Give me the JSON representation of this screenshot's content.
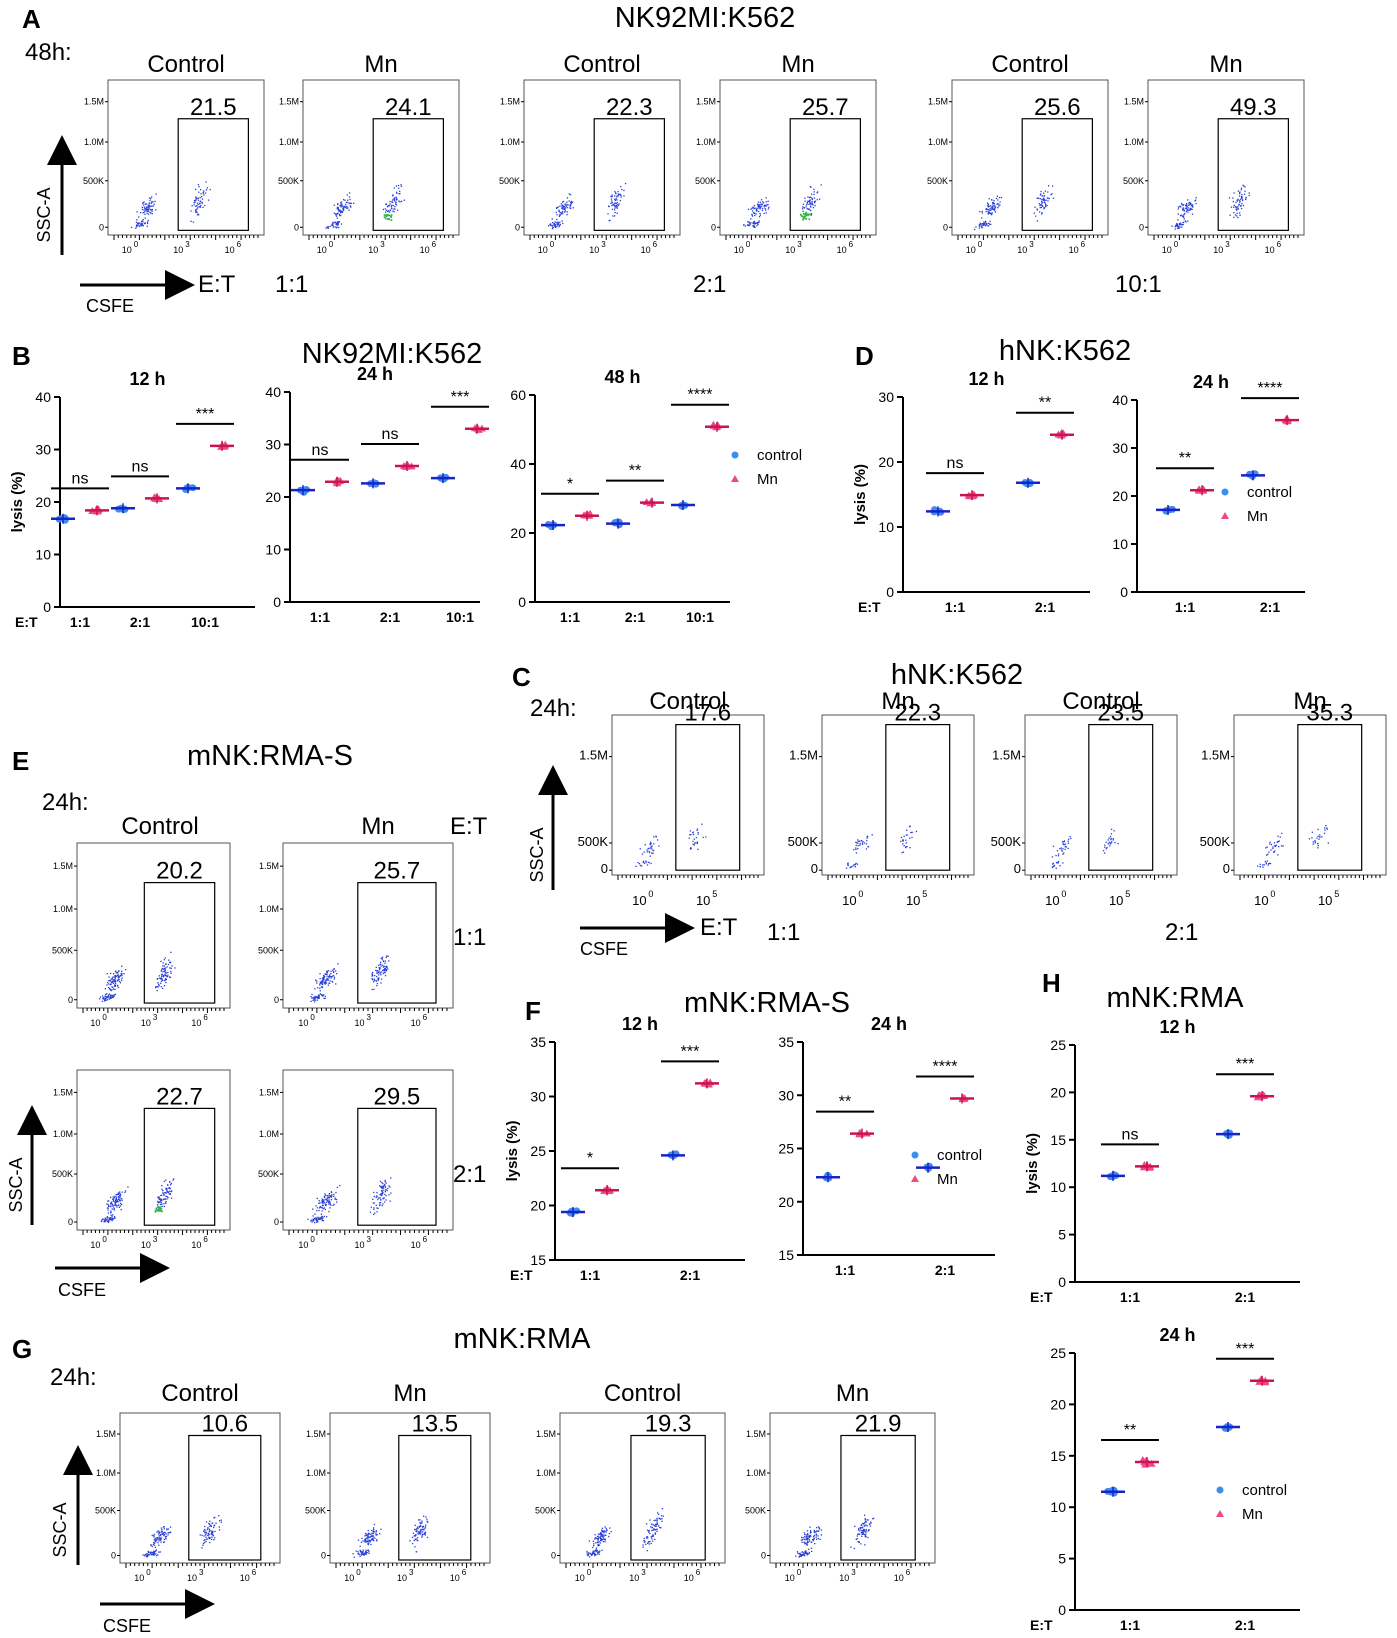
{
  "figure": {
    "A": {
      "letter": "A",
      "title": "NK92MI:K562",
      "time": "48h:",
      "et_label": "E:T",
      "x_axis": "CSFE",
      "y_axis": "SSC-A",
      "y_ticks": [
        "1.5M",
        "1.0M",
        "500K",
        "0"
      ],
      "x_ticks": [
        "10",
        "10",
        "10"
      ],
      "x_exp": [
        "0",
        "3",
        "6"
      ],
      "plots": [
        {
          "header": "Control",
          "gate": "21.5"
        },
        {
          "header": "Mn",
          "gate": "24.1"
        },
        {
          "header": "Control",
          "gate": "22.3"
        },
        {
          "header": "Mn",
          "gate": "25.7"
        },
        {
          "header": "Control",
          "gate": "25.6"
        },
        {
          "header": "Mn",
          "gate": "49.3"
        }
      ],
      "ratios": [
        "1:1",
        "2:1",
        "10:1"
      ]
    },
    "B": {
      "letter": "B",
      "title": "NK92MI:K562"
    },
    "C": {
      "letter": "C",
      "title": "hNK:K562",
      "time": "24h:",
      "et_label": "E:T",
      "x_axis": "CSFE",
      "y_axis": "SSC-A",
      "y_ticks": [
        "1.5M",
        "500K",
        "0"
      ],
      "x_ticks": [
        "10",
        "10"
      ],
      "x_exp": [
        "0",
        "5"
      ],
      "plots": [
        {
          "header": "Control",
          "gate": "17.6"
        },
        {
          "header": "Mn",
          "gate": "22.3"
        },
        {
          "header": "Control",
          "gate": "23.5"
        },
        {
          "header": "Mn",
          "gate": "35.3"
        }
      ],
      "ratios": [
        "1:1",
        "2:1"
      ]
    },
    "D": {
      "letter": "D",
      "title": "hNK:K562"
    },
    "E": {
      "letter": "E",
      "title": "mNK:RMA-S",
      "time": "24h:",
      "et_label": "E:T",
      "x_axis": "CSFE",
      "y_axis": "SSC-A",
      "y_ticks": [
        "1.5M",
        "1.0M",
        "500K",
        "0"
      ],
      "x_ticks": [
        "10",
        "10",
        "10"
      ],
      "x_exp": [
        "0",
        "3",
        "6"
      ],
      "headers": [
        "Control",
        "Mn"
      ],
      "plots": [
        {
          "gate": "20.2"
        },
        {
          "gate": "25.7"
        },
        {
          "gate": "22.7"
        },
        {
          "gate": "29.5"
        }
      ],
      "ratios": [
        "1:1",
        "2:1"
      ]
    },
    "F": {
      "letter": "F",
      "title": "mNK:RMA-S"
    },
    "G": {
      "letter": "G",
      "title": "mNK:RMA",
      "time": "24h:",
      "x_axis": "CSFE",
      "y_axis": "SSC-A",
      "y_ticks": [
        "1.5M",
        "1.0M",
        "500K",
        "0"
      ],
      "x_ticks": [
        "10",
        "10",
        "10"
      ],
      "x_exp": [
        "0",
        "3",
        "6"
      ],
      "plots": [
        {
          "header": "Control",
          "gate": "10.6"
        },
        {
          "header": "Mn",
          "gate": "13.5"
        },
        {
          "header": "Control",
          "gate": "19.3"
        },
        {
          "header": "Mn",
          "gate": "21.9"
        }
      ]
    },
    "H": {
      "letter": "H",
      "title": "mNK:RMA"
    },
    "legend": [
      "control",
      "Mn"
    ],
    "colors": {
      "control": "#3a8ef0",
      "mn": "#f0468c",
      "mean_control": "#1a22c8",
      "mean_mn": "#c81450",
      "scatter": "#2a3fd6"
    }
  },
  "chart_data": [
    {
      "id": "B-12h",
      "type": "scatter",
      "title": "12 h",
      "ylabel": "lysis (%)",
      "xlabel": "E:T",
      "categories": [
        "1:1",
        "2:1",
        "10:1"
      ],
      "ylim": [
        0,
        40
      ],
      "yticks": [
        0,
        10,
        20,
        30,
        40
      ],
      "series": [
        {
          "name": "control",
          "values": [
            16.8,
            18.8,
            22.6
          ]
        },
        {
          "name": "Mn",
          "values": [
            18.4,
            20.7,
            30.7
          ]
        }
      ],
      "significance": [
        "ns",
        "ns",
        "***"
      ]
    },
    {
      "id": "B-24h",
      "type": "scatter",
      "title": "24 h",
      "categories": [
        "1:1",
        "2:1",
        "10:1"
      ],
      "ylim": [
        0,
        40
      ],
      "yticks": [
        0,
        10,
        20,
        30,
        40
      ],
      "series": [
        {
          "name": "control",
          "values": [
            21.3,
            22.6,
            23.6
          ]
        },
        {
          "name": "Mn",
          "values": [
            22.9,
            25.9,
            33.0
          ]
        }
      ],
      "significance": [
        "ns",
        "ns",
        "***"
      ]
    },
    {
      "id": "B-48h",
      "type": "scatter",
      "title": "48 h",
      "categories": [
        "1:1",
        "2:1",
        "10:1"
      ],
      "ylim": [
        0,
        60
      ],
      "yticks": [
        0,
        20,
        40,
        60
      ],
      "series": [
        {
          "name": "control",
          "values": [
            22.3,
            22.7,
            28.1
          ]
        },
        {
          "name": "Mn",
          "values": [
            25.0,
            28.8,
            50.8
          ]
        }
      ],
      "significance": [
        "*",
        "**",
        "****"
      ],
      "legend": "right"
    },
    {
      "id": "D-12h",
      "type": "scatter",
      "title": "12 h",
      "ylabel": "lysis (%)",
      "xlabel": "E:T",
      "categories": [
        "1:1",
        "2:1"
      ],
      "ylim": [
        0,
        30
      ],
      "yticks": [
        0,
        10,
        20,
        30
      ],
      "series": [
        {
          "name": "control",
          "values": [
            12.4,
            16.8
          ]
        },
        {
          "name": "Mn",
          "values": [
            14.9,
            24.2
          ]
        }
      ],
      "significance": [
        "ns",
        "**"
      ]
    },
    {
      "id": "D-24h",
      "type": "scatter",
      "title": "24 h",
      "categories": [
        "1:1",
        "2:1"
      ],
      "ylim": [
        0,
        40
      ],
      "yticks": [
        0,
        10,
        20,
        30,
        40
      ],
      "series": [
        {
          "name": "control",
          "values": [
            17.1,
            24.3
          ]
        },
        {
          "name": "Mn",
          "values": [
            21.2,
            35.8
          ]
        }
      ],
      "significance": [
        "**",
        "****"
      ],
      "legend": "bottom-right"
    },
    {
      "id": "F-12h",
      "type": "scatter",
      "title": "12 h",
      "ylabel": "lysis (%)",
      "xlabel": "E:T",
      "categories": [
        "1:1",
        "2:1"
      ],
      "ylim": [
        15,
        35
      ],
      "yticks": [
        15,
        20,
        25,
        30,
        35
      ],
      "series": [
        {
          "name": "control",
          "values": [
            19.4,
            24.6
          ]
        },
        {
          "name": "Mn",
          "values": [
            21.4,
            31.2
          ]
        }
      ],
      "significance": [
        "*",
        "***"
      ]
    },
    {
      "id": "F-24h",
      "type": "scatter",
      "title": "24 h",
      "categories": [
        "1:1",
        "2:1"
      ],
      "ylim": [
        15,
        35
      ],
      "yticks": [
        15,
        20,
        25,
        30,
        35
      ],
      "series": [
        {
          "name": "control",
          "values": [
            22.3,
            23.2
          ]
        },
        {
          "name": "Mn",
          "values": [
            26.4,
            29.7
          ]
        }
      ],
      "significance": [
        "**",
        "****"
      ],
      "legend": "bottom-right"
    },
    {
      "id": "H-12h",
      "type": "scatter",
      "title": "12 h",
      "ylabel": "lysis (%)",
      "xlabel": "E:T",
      "categories": [
        "1:1",
        "2:1"
      ],
      "ylim": [
        0,
        25
      ],
      "yticks": [
        0,
        5,
        10,
        15,
        20,
        25
      ],
      "series": [
        {
          "name": "control",
          "values": [
            11.2,
            15.6
          ]
        },
        {
          "name": "Mn",
          "values": [
            12.2,
            19.6
          ]
        }
      ],
      "significance": [
        "ns",
        "***"
      ]
    },
    {
      "id": "H-24h",
      "type": "scatter",
      "title": "24 h",
      "xlabel": "E:T",
      "categories": [
        "1:1",
        "2:1"
      ],
      "ylim": [
        0,
        25
      ],
      "yticks": [
        0,
        5,
        10,
        15,
        20,
        25
      ],
      "series": [
        {
          "name": "control",
          "values": [
            11.5,
            17.8
          ]
        },
        {
          "name": "Mn",
          "values": [
            14.4,
            22.3
          ]
        }
      ],
      "significance": [
        "**",
        "***"
      ],
      "legend": "bottom-right"
    }
  ]
}
